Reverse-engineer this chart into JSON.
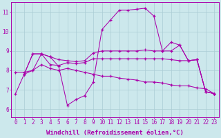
{
  "background_color": "#cce8ec",
  "grid_color": "#aaccd4",
  "line_color": "#aa00aa",
  "marker_color": "#aa00aa",
  "xlabel": "Windchill (Refroidissement éolien,°C)",
  "ylabel_ticks": [
    6,
    7,
    8,
    9,
    10,
    11
  ],
  "xlim": [
    -0.5,
    23.5
  ],
  "ylim": [
    5.6,
    11.5
  ],
  "lines": [
    {
      "x": [
        0,
        1,
        2,
        3,
        4,
        5,
        6,
        7,
        8,
        9,
        10,
        11,
        12,
        13,
        14,
        15,
        16,
        17,
        18,
        19,
        20,
        21,
        22,
        23
      ],
      "y": [
        6.8,
        7.8,
        8.0,
        8.85,
        8.7,
        8.2,
        6.2,
        6.5,
        6.7,
        7.4,
        10.1,
        10.6,
        11.1,
        11.1,
        11.15,
        11.2,
        10.8,
        9.0,
        9.45,
        9.3,
        8.5,
        8.55,
        6.9,
        6.8
      ]
    },
    {
      "x": [
        1,
        2,
        3,
        4,
        5,
        6,
        7,
        8,
        9,
        10,
        11,
        12,
        13,
        14,
        15,
        16,
        17,
        18,
        19,
        20,
        21,
        22,
        23
      ],
      "y": [
        7.8,
        8.85,
        8.85,
        8.7,
        8.55,
        8.5,
        8.45,
        8.5,
        8.9,
        9.0,
        9.0,
        9.0,
        9.0,
        9.0,
        9.05,
        9.0,
        9.0,
        9.0,
        9.3,
        8.5,
        8.55,
        6.9,
        6.8
      ]
    },
    {
      "x": [
        1,
        2,
        3,
        4,
        5,
        6,
        7,
        8,
        9,
        10,
        11,
        12,
        13,
        14,
        15,
        16,
        17,
        18,
        19,
        20,
        21,
        22,
        23
      ],
      "y": [
        7.8,
        8.85,
        8.85,
        8.3,
        8.25,
        8.4,
        8.35,
        8.4,
        8.6,
        8.6,
        8.6,
        8.6,
        8.6,
        8.6,
        8.6,
        8.6,
        8.6,
        8.55,
        8.5,
        8.5,
        8.55,
        6.9,
        6.8
      ]
    },
    {
      "x": [
        0,
        1,
        2,
        3,
        4,
        5,
        6,
        7,
        8,
        9,
        10,
        11,
        12,
        13,
        14,
        15,
        16,
        17,
        18,
        19,
        20,
        21,
        22,
        23
      ],
      "y": [
        7.9,
        7.9,
        8.0,
        8.3,
        8.1,
        8.0,
        8.1,
        8.0,
        7.9,
        7.8,
        7.7,
        7.7,
        7.6,
        7.55,
        7.5,
        7.4,
        7.4,
        7.35,
        7.25,
        7.2,
        7.2,
        7.1,
        7.05,
        6.8
      ]
    }
  ],
  "xtick_labels": [
    "0",
    "1",
    "2",
    "3",
    "4",
    "5",
    "6",
    "7",
    "8",
    "9",
    "10",
    "11",
    "12",
    "13",
    "14",
    "15",
    "16",
    "17",
    "18",
    "19",
    "20",
    "21",
    "22",
    "23"
  ],
  "tick_fontsize": 5.5,
  "label_fontsize": 6.5
}
